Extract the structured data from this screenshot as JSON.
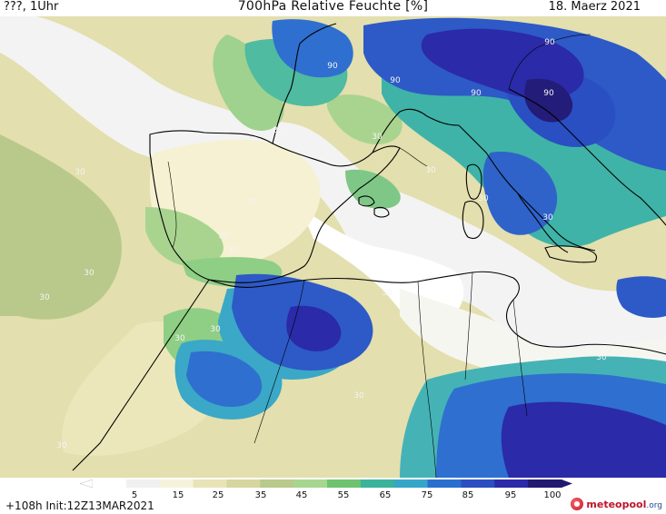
{
  "header": {
    "left": "???, 1Uhr",
    "title": "700hPa Relative Feuchte [%]",
    "date": "18. Maerz 2021"
  },
  "map": {
    "contour_labels": [
      "90",
      "90",
      "90",
      "90",
      "90",
      "30",
      "30",
      "30",
      "30",
      "30",
      "30",
      "30",
      "30",
      "30",
      "30",
      "30",
      "30",
      "30",
      "30",
      "30",
      "30",
      "30",
      "30",
      "30",
      "30"
    ],
    "colors": {
      "very_dry": "#ffffff",
      "dry": "#f0f0f0",
      "light_cream": "#f5f3dc",
      "cream": "#e8e4b8",
      "khaki": "#d6d6a0",
      "olive": "#b8c98a",
      "light_green": "#a6d68f",
      "green": "#6fc36f",
      "teal": "#3ab39a",
      "cyan": "#36a6c8",
      "blue": "#2a6fcf",
      "mid_blue": "#2b4fc2",
      "dark_blue": "#2b2aa8",
      "navy": "#221a6e",
      "coast": "#000000"
    }
  },
  "legend": {
    "labels": [
      "5",
      "15",
      "25",
      "35",
      "45",
      "55",
      "65",
      "75",
      "85",
      "95",
      "100"
    ],
    "colors": [
      "#ffffff",
      "#f0f0f0",
      "#f5f3dc",
      "#e8e4b8",
      "#d6d6a0",
      "#b8c98a",
      "#a6d68f",
      "#6fc36f",
      "#3ab39a",
      "#36a6c8",
      "#2a6fcf",
      "#2b4fc2",
      "#2b2aa8",
      "#221a6e"
    ]
  },
  "footer": {
    "run": "+108h  Init:12Z13MAR2021",
    "brand": "meteopool",
    "brand_domain": ".org"
  }
}
